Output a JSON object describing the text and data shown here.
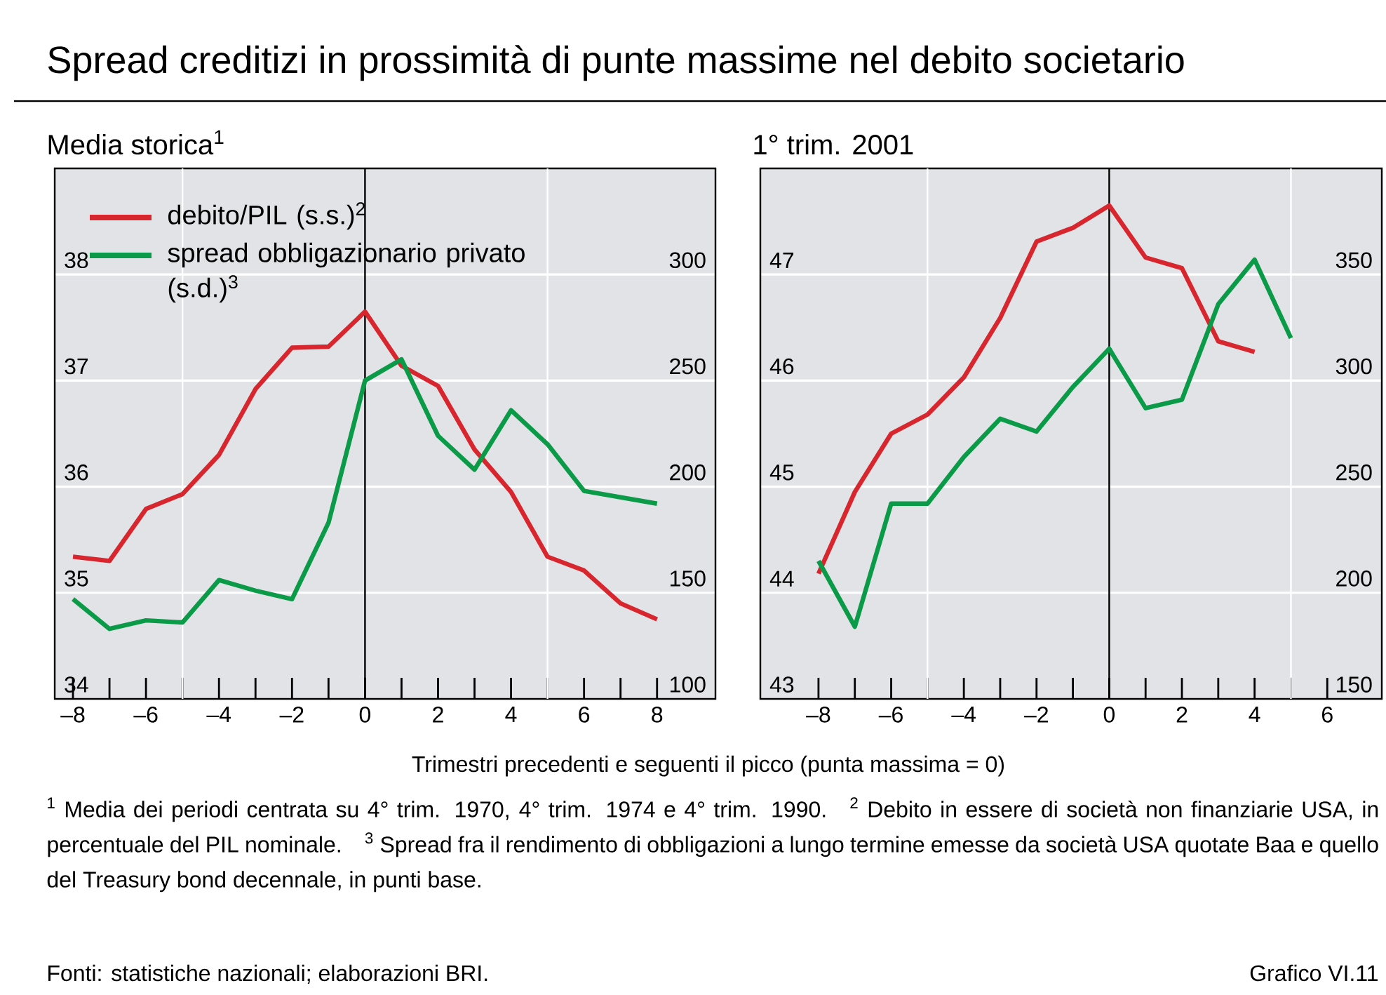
{
  "chart_data": [
    {
      "type": "line",
      "title": "Spread creditizi in prossimità di punte massime nel debito societario",
      "subtitle": "Media storica$^{1}$",
      "xlabel": "Trimestri precedenti e seguenti il picco (punta massima = 0)",
      "annotations": [
        "$^{1}$ Media dei periodi centrata su 4° trim. 1970, 4° trim. 1974 e 4° trim. 1990.",
        "$^{2}$ Debito in essere di società non finanziarie USA, in percentuale del PIL nominale.",
        "$^{3}$ Spread fra il rendimento di obbligazioni a lungo termine emesse da società USA quotate Baa e quello del Treasury bond decennale, in punti base.",
        "Fonti: statistiche nazionali; elaborazioni BRI.",
        "Grafico  VI.11"
      ],
      "x": [
        -8,
        -7,
        -6,
        -5,
        -4,
        -3,
        -2,
        -1,
        0,
        1,
        2,
        3,
        4,
        5,
        6,
        7,
        8
      ],
      "series": [
        {
          "name": "debito/PIL (s.s.)$^{2}$",
          "color": "#d7262e",
          "values": [
            35.34,
            35.3,
            35.79,
            35.93,
            36.3,
            36.92,
            37.31,
            37.32,
            37.65,
            37.14,
            36.95,
            36.35,
            35.95,
            35.34,
            35.21,
            34.9,
            34.75
          ]
        },
        {
          "name": "spread obbligazionario privato (s.d.)$^{3}$",
          "color": "#0a9a48",
          "axis": "y2",
          "values": [
            147,
            133,
            137,
            136,
            156,
            151,
            147,
            183,
            250,
            260,
            224,
            208,
            236,
            220,
            198,
            195,
            192
          ]
        }
      ],
      "legend": "top left",
      "grid": "y",
      "ref_lines": [
        {
          "axis": "x",
          "value": -5,
          "color": "#ffffff"
        },
        {
          "axis": "x",
          "value": 0,
          "color": "#000000"
        },
        {
          "axis": "x",
          "value": 5,
          "color": "#ffffff"
        }
      ],
      "xlim": [
        -8.5,
        9.6
      ],
      "xticks": [
        {
          "value": -8,
          "label": "–8"
        },
        {
          "value": -7,
          "label": null
        },
        {
          "value": -6,
          "label": "–6"
        },
        {
          "value": -5,
          "label": null
        },
        {
          "value": -4,
          "label": "–4"
        },
        {
          "value": -3,
          "label": null
        },
        {
          "value": -2,
          "label": "–2"
        },
        {
          "value": -1,
          "label": null
        },
        0,
        {
          "value": 1,
          "label": null
        },
        2,
        {
          "value": 3,
          "label": null
        },
        4,
        {
          "value": 5,
          "label": null
        },
        6,
        {
          "value": 7,
          "label": null
        },
        8
      ],
      "ylim": [
        34,
        39
      ],
      "yticks": [
        34,
        35,
        36,
        37,
        38
      ],
      "y2lim": [
        100,
        350
      ],
      "y2ticks": [
        100,
        150,
        200,
        250,
        300
      ]
    },
    {
      "type": "line",
      "subtitle": "1° trim. 2001",
      "x": [
        -8,
        -7,
        -6,
        -5,
        -4,
        -3,
        -2,
        -1,
        0,
        1,
        2,
        3,
        4,
        5
      ],
      "series": [
        {
          "color": "#d7262e",
          "values": [
            44.18,
            44.95,
            45.5,
            45.68,
            46.03,
            46.59,
            47.31,
            47.44,
            47.65,
            47.16,
            47.06,
            46.37,
            46.27,
            null
          ]
        },
        {
          "color": "#0a9a48",
          "axis": "y2",
          "values": [
            215,
            184,
            242,
            242,
            264,
            282,
            276,
            297,
            315,
            287,
            291,
            336,
            357,
            320
          ]
        }
      ],
      "grid": "y",
      "ref_lines": [
        {
          "axis": "x",
          "value": -5,
          "color": "#ffffff"
        },
        {
          "axis": "x",
          "value": 0,
          "color": "#000000"
        },
        {
          "axis": "x",
          "value": 5,
          "color": "#ffffff"
        }
      ],
      "xlim": [
        -9.6,
        7.5
      ],
      "xticks": [
        {
          "value": -8,
          "label": "–8"
        },
        {
          "value": -7,
          "label": null
        },
        {
          "value": -6,
          "label": "–6"
        },
        {
          "value": -5,
          "label": null
        },
        {
          "value": -4,
          "label": "–4"
        },
        {
          "value": -3,
          "label": null
        },
        {
          "value": -2,
          "label": "–2"
        },
        {
          "value": -1,
          "label": null
        },
        0,
        {
          "value": 1,
          "label": null
        },
        2,
        {
          "value": 3,
          "label": null
        },
        4,
        {
          "value": 5,
          "label": null
        },
        6
      ],
      "ylim": [
        43,
        48
      ],
      "yticks": [
        43,
        44,
        45,
        46,
        47
      ],
      "y2lim": [
        150,
        400
      ],
      "y2ticks": [
        150,
        200,
        250,
        300,
        350
      ]
    }
  ]
}
